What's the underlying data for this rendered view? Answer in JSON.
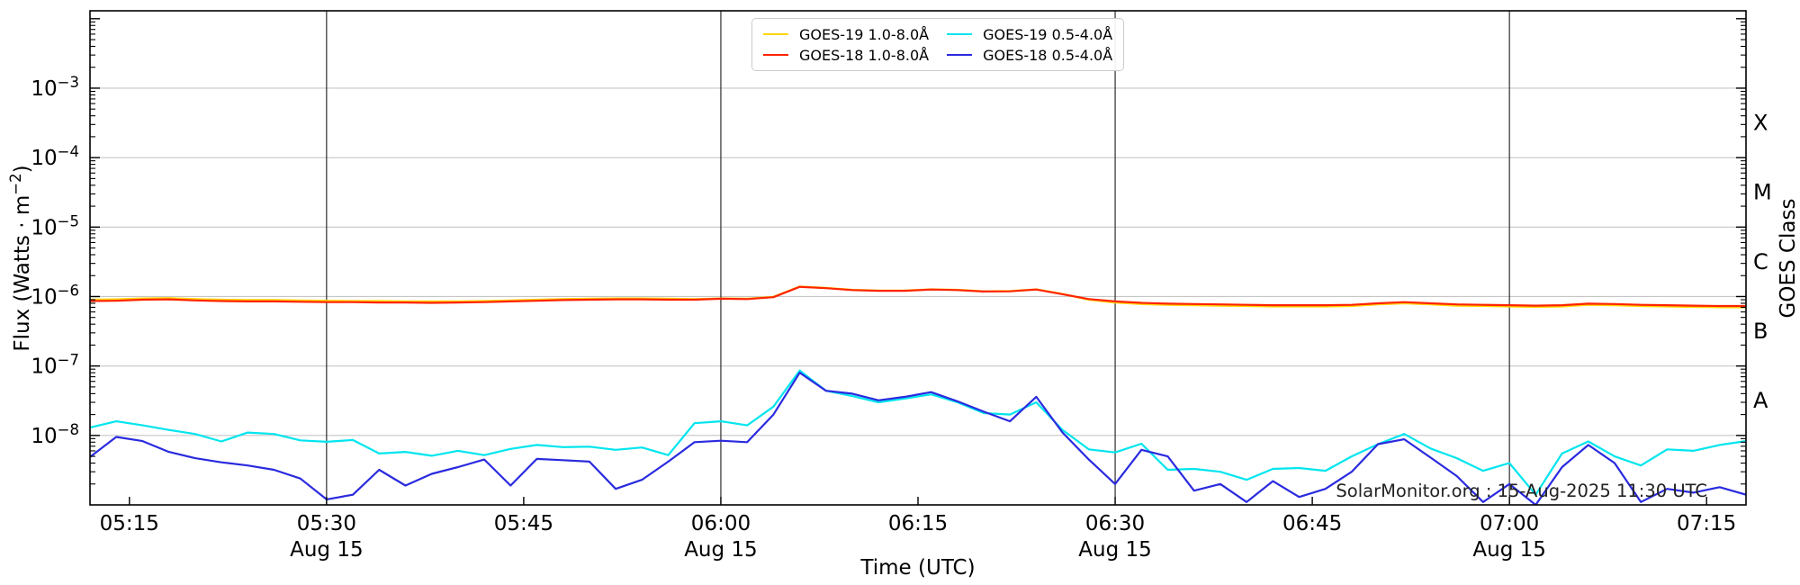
{
  "watermark": "SolarMonitor.org : 15-Aug-2025 11:30 UTC",
  "chart_data": {
    "type": "line",
    "title": "",
    "xlabel": "Time (UTC)",
    "ylabel": "Flux (Watts · m⁻²)",
    "ylabel_parts": {
      "main": "Flux (Watts · m",
      "sup": "−2",
      "end": ")"
    },
    "y2label": "GOES Class",
    "x_start": "05:12",
    "x_end": "07:18",
    "x_total_minutes": 126,
    "x_tick_labels": [
      "05:15",
      "05:30",
      "05:45",
      "06:00",
      "06:15",
      "06:30",
      "06:45",
      "07:00",
      "07:15"
    ],
    "x_tick_minutes": [
      3,
      18,
      33,
      48,
      63,
      78,
      93,
      108,
      123
    ],
    "date_label": "Aug 15",
    "date_tick_minutes": [
      18,
      48,
      78,
      108
    ],
    "vline_minutes": [
      18,
      48,
      78,
      108
    ],
    "ylim": [
      1e-09,
      0.013
    ],
    "y_tick_exponents": [
      -3,
      -4,
      -5,
      -6,
      -7,
      -8
    ],
    "grid_on": true,
    "grid_color": "#c6c6c6",
    "vline_color": "#1a1a1a",
    "legend_position": "upper center, two columns",
    "goes_classes": [
      {
        "label": "X",
        "log_center": -3.5
      },
      {
        "label": "M",
        "log_center": -4.5
      },
      {
        "label": "C",
        "log_center": -5.5
      },
      {
        "label": "B",
        "log_center": -6.5
      },
      {
        "label": "A",
        "log_center": -7.5
      }
    ],
    "x_minutes": [
      0,
      2,
      4,
      6,
      8,
      10,
      12,
      14,
      16,
      18,
      20,
      22,
      24,
      26,
      28,
      30,
      32,
      34,
      36,
      38,
      40,
      42,
      44,
      46,
      48,
      50,
      52,
      54,
      56,
      58,
      60,
      62,
      64,
      66,
      68,
      70,
      72,
      74,
      76,
      78,
      80,
      82,
      84,
      86,
      88,
      90,
      92,
      94,
      96,
      98,
      100,
      102,
      104,
      106,
      108,
      110,
      112,
      114,
      116,
      118,
      120,
      122,
      124,
      126
    ],
    "series": [
      {
        "name": "GOES-19 1.0-8.0Å",
        "color": "#FFD600",
        "values": [
          9e-07,
          9.1e-07,
          9.4e-07,
          9.5e-07,
          9.2e-07,
          9e-07,
          8.9e-07,
          8.9e-07,
          8.8e-07,
          8.7e-07,
          8.6e-07,
          8.6e-07,
          8.5e-07,
          8.5e-07,
          8.5e-07,
          8.6e-07,
          8.8e-07,
          9e-07,
          9.2e-07,
          9.3e-07,
          9.4e-07,
          9.4e-07,
          9.3e-07,
          9.2e-07,
          9.4e-07,
          9.3e-07,
          9.9e-07,
          1.39e-06,
          1.33e-06,
          1.25e-06,
          1.22e-06,
          1.22e-06,
          1.27e-06,
          1.25e-06,
          1.19e-06,
          1.2e-06,
          1.27e-06,
          1.09e-06,
          9e-07,
          8.2e-07,
          7.8e-07,
          7.6e-07,
          7.5e-07,
          7.4e-07,
          7.3e-07,
          7.2e-07,
          7.2e-07,
          7.2e-07,
          7.3e-07,
          7.7e-07,
          8e-07,
          7.7e-07,
          7.4e-07,
          7.3e-07,
          7.2e-07,
          7.1e-07,
          7.2e-07,
          7.6e-07,
          7.5e-07,
          7.3e-07,
          7.2e-07,
          7.1e-07,
          7e-07,
          7e-07
        ]
      },
      {
        "name": "GOES-18 1.0-8.0Å",
        "color": "#FF2400",
        "values": [
          8.6e-07,
          8.7e-07,
          9e-07,
          9.1e-07,
          8.8e-07,
          8.6e-07,
          8.5e-07,
          8.5e-07,
          8.4e-07,
          8.3e-07,
          8.3e-07,
          8.2e-07,
          8.2e-07,
          8.1e-07,
          8.2e-07,
          8.3e-07,
          8.5e-07,
          8.7e-07,
          8.9e-07,
          9e-07,
          9.1e-07,
          9.1e-07,
          9e-07,
          9e-07,
          9.3e-07,
          9.2e-07,
          9.8e-07,
          1.38e-06,
          1.32e-06,
          1.24e-06,
          1.21e-06,
          1.21e-06,
          1.26e-06,
          1.24e-06,
          1.18e-06,
          1.19e-06,
          1.26e-06,
          1.08e-06,
          9.2e-07,
          8.5e-07,
          8.1e-07,
          7.9e-07,
          7.8e-07,
          7.7e-07,
          7.6e-07,
          7.5e-07,
          7.5e-07,
          7.5e-07,
          7.6e-07,
          8e-07,
          8.3e-07,
          8e-07,
          7.7e-07,
          7.6e-07,
          7.5e-07,
          7.4e-07,
          7.5e-07,
          7.9e-07,
          7.8e-07,
          7.6e-07,
          7.5e-07,
          7.4e-07,
          7.3e-07,
          7.3e-07
        ]
      },
      {
        "name": "GOES-19 0.5-4.0Å",
        "color": "#00E5EE",
        "values": [
          1.3e-08,
          1.6e-08,
          1.4e-08,
          1.2e-08,
          1.05e-08,
          8.2e-09,
          1.1e-08,
          1.05e-08,
          8.5e-09,
          8.1e-09,
          8.6e-09,
          5.5e-09,
          5.8e-09,
          5.1e-09,
          6e-09,
          5.2e-09,
          6.4e-09,
          7.3e-09,
          6.8e-09,
          6.9e-09,
          6.2e-09,
          6.7e-09,
          5.2e-09,
          1.5e-08,
          1.6e-08,
          1.4e-08,
          2.6e-08,
          8.6e-08,
          4.4e-08,
          3.7e-08,
          3e-08,
          3.4e-08,
          3.9e-08,
          3e-08,
          2.1e-08,
          2e-08,
          3e-08,
          1.2e-08,
          6.3e-09,
          5.7e-09,
          7.6e-09,
          3.2e-09,
          3.3e-09,
          3e-09,
          2.3e-09,
          3.3e-09,
          3.4e-09,
          3.1e-09,
          5e-09,
          7.5e-09,
          1.05e-08,
          6.5e-09,
          4.7e-09,
          3.1e-09,
          4e-09,
          1.4e-09,
          5.5e-09,
          8.2e-09,
          5e-09,
          3.7e-09,
          6.3e-09,
          6e-09,
          7.3e-09,
          8.3e-09
        ]
      },
      {
        "name": "GOES-18 0.5-4.0Å",
        "color": "#2A2ADF",
        "values": [
          4.9e-09,
          9.5e-09,
          8.3e-09,
          5.8e-09,
          4.7e-09,
          4.1e-09,
          3.7e-09,
          3.2e-09,
          2.4e-09,
          1.2e-09,
          1.4e-09,
          3.2e-09,
          1.9e-09,
          2.8e-09,
          3.5e-09,
          4.5e-09,
          1.9e-09,
          4.6e-09,
          4.4e-09,
          4.2e-09,
          1.7e-09,
          2.3e-09,
          4.2e-09,
          8e-09,
          8.4e-09,
          8e-09,
          2e-08,
          8e-08,
          4.4e-08,
          4e-08,
          3.2e-08,
          3.6e-08,
          4.2e-08,
          3.1e-08,
          2.2e-08,
          1.6e-08,
          3.6e-08,
          1.1e-08,
          4.5e-09,
          2e-09,
          6.2e-09,
          5e-09,
          1.6e-09,
          2e-09,
          1.1e-09,
          2.2e-09,
          1.3e-09,
          1.7e-09,
          3e-09,
          7.5e-09,
          8.8e-09,
          4.8e-09,
          2.6e-09,
          1.1e-09,
          2e-09,
          1e-09,
          3.5e-09,
          7.3e-09,
          4e-09,
          1.1e-09,
          1.7e-09,
          1.5e-09,
          1.8e-09,
          1.4e-09
        ]
      }
    ]
  }
}
